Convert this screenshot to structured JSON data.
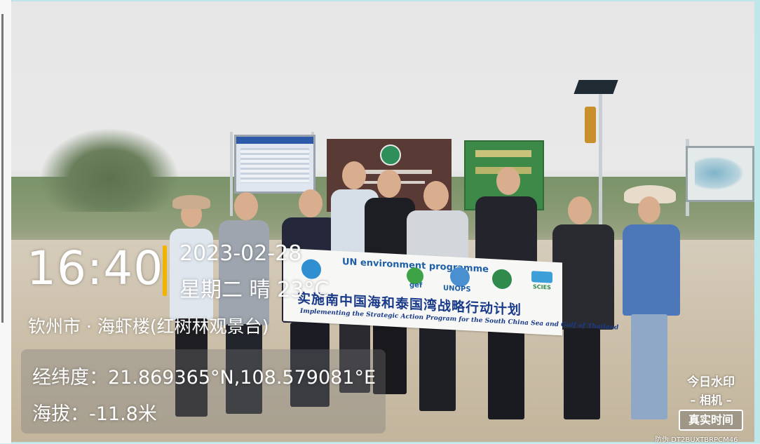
{
  "watermark": {
    "time": "16:40",
    "date": "2023-02-28",
    "weather": "星期二 晴 23°C",
    "location": "钦州市 · 海虾楼(红树林观景台)",
    "coordinates": "经纬度：21.869365°N,108.579081°E",
    "altitude": "海拔：-11.8米",
    "accent_color": "#f0b400"
  },
  "camera_brand": {
    "line1": "今日水印",
    "line2": "– 相机 –",
    "badge": "真实时间",
    "code": "防伪 DT2BUXTBRPCM46"
  },
  "banner": {
    "logos": [
      "UN environment programme",
      "gef",
      "UNOPS",
      "SCIES"
    ],
    "title": "实施南中国海和泰国湾战略行动计划",
    "subtitle": "Implementing the Strategic Action Program for the South China Sea and Gulf of Thailand"
  }
}
